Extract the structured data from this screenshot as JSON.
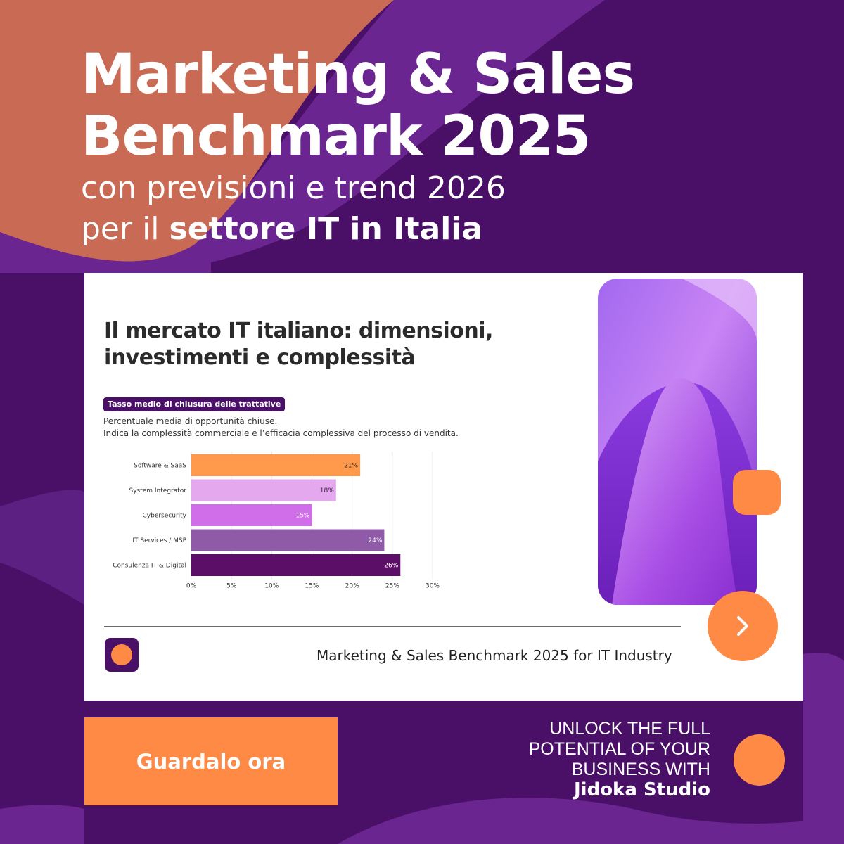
{
  "headline": {
    "title_line1": "Marketing & Sales",
    "title_line2": "Benchmark 2025",
    "subtitle_line1": "con previsioni e trend 2026",
    "subtitle_line2_prefix": "per il ",
    "subtitle_line2_bold": "settore IT in Italia"
  },
  "slide": {
    "title": "Il mercato IT italiano: dimensioni, investimenti e complessità",
    "tag": "Tasso medio di chiusura delle trattative",
    "desc_line1": "Percentuale media di opportunità chiuse.",
    "desc_line2": "Indica la complessità commerciale e l’efficacia complessiva del processo di vendita.",
    "footer": "Marketing & Sales Benchmark 2025 for IT Industry"
  },
  "chart_data": {
    "type": "bar",
    "orientation": "horizontal",
    "categories": [
      "Software & SaaS",
      "System Integrator",
      "Cybersecurity",
      "IT Services / MSP",
      "Consulenza IT & Digital"
    ],
    "values": [
      21,
      18,
      15,
      24,
      26
    ],
    "value_labels": [
      "21%",
      "18%",
      "15%",
      "24%",
      "26%"
    ],
    "bar_colors": [
      "#ff9a4d",
      "#e3a8ee",
      "#cf6ee8",
      "#8f5aa8",
      "#5c0f66"
    ],
    "label_colors": [
      "#3a1a0a",
      "#3a1a40",
      "#ffffff",
      "#ffffff",
      "#ffffff"
    ],
    "x_ticks": [
      "0%",
      "5%",
      "10%",
      "15%",
      "20%",
      "25%",
      "30%"
    ],
    "xlim": [
      0,
      30
    ],
    "grid": true
  },
  "cta": {
    "label": "Guardalo ora"
  },
  "promo": {
    "line1": "UNLOCK THE FULL",
    "line2": "POTENTIAL OF YOUR",
    "line3": "BUSINESS WITH",
    "brand": "Jidoka Studio"
  },
  "colors": {
    "accent": "#ff8a45",
    "brand_purple": "#4a0f66",
    "coral": "#c96a55"
  }
}
